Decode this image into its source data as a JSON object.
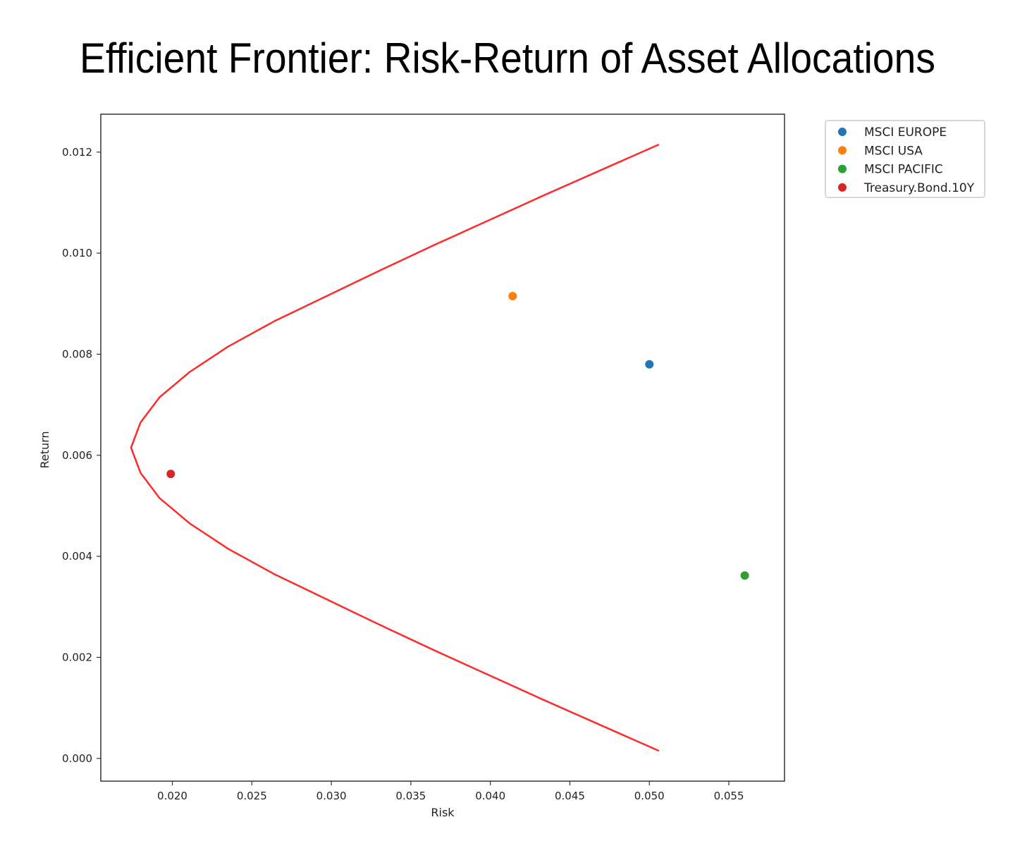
{
  "chart_data": {
    "type": "scatter",
    "title": "Efficient Frontier: Risk-Return of Asset Allocations",
    "xlabel": "Risk",
    "ylabel": "Return",
    "xlim": [
      0.0155,
      0.0585
    ],
    "ylim": [
      -0.00045,
      0.01275
    ],
    "xticks": [
      0.02,
      0.025,
      0.03,
      0.035,
      0.04,
      0.045,
      0.05,
      0.055
    ],
    "xtick_labels": [
      "0.020",
      "0.025",
      "0.030",
      "0.035",
      "0.040",
      "0.045",
      "0.050",
      "0.055"
    ],
    "yticks": [
      0.0,
      0.002,
      0.004,
      0.006,
      0.008,
      0.01,
      0.012
    ],
    "ytick_labels": [
      "0.000",
      "0.002",
      "0.004",
      "0.006",
      "0.008",
      "0.010",
      "0.012"
    ],
    "grid": false,
    "legend_position": "outside top-right",
    "series": [
      {
        "name": "MSCI EUROPE",
        "color": "#1f77b4",
        "x": [
          0.05
        ],
        "y": [
          0.0078
        ]
      },
      {
        "name": "MSCI USA",
        "color": "#ff7f0e",
        "x": [
          0.0414
        ],
        "y": [
          0.00915
        ]
      },
      {
        "name": "MSCI PACIFIC",
        "color": "#2ca02c",
        "x": [
          0.056
        ],
        "y": [
          0.00362
        ]
      },
      {
        "name": "Treasury.Bond.10Y",
        "color": "#d62728",
        "x": [
          0.0199
        ],
        "y": [
          0.00563
        ]
      }
    ],
    "frontier": {
      "color": "#ff2a2a",
      "x": [
        0.0506,
        0.047,
        0.0434,
        0.0399,
        0.0364,
        0.033,
        0.0297,
        0.0264,
        0.0235,
        0.0211,
        0.0192,
        0.018,
        0.0174,
        0.018,
        0.0192,
        0.0211,
        0.0235,
        0.0264,
        0.0297,
        0.033,
        0.0364,
        0.0399,
        0.0434,
        0.047,
        0.0506
      ],
      "y": [
        0.00015,
        0.00065,
        0.00115,
        0.00165,
        0.00215,
        0.00265,
        0.00315,
        0.00365,
        0.00415,
        0.00465,
        0.00515,
        0.00565,
        0.00615,
        0.00665,
        0.00715,
        0.00765,
        0.00815,
        0.00865,
        0.00915,
        0.00965,
        0.01015,
        0.01065,
        0.01115,
        0.01165,
        0.01215
      ]
    }
  }
}
